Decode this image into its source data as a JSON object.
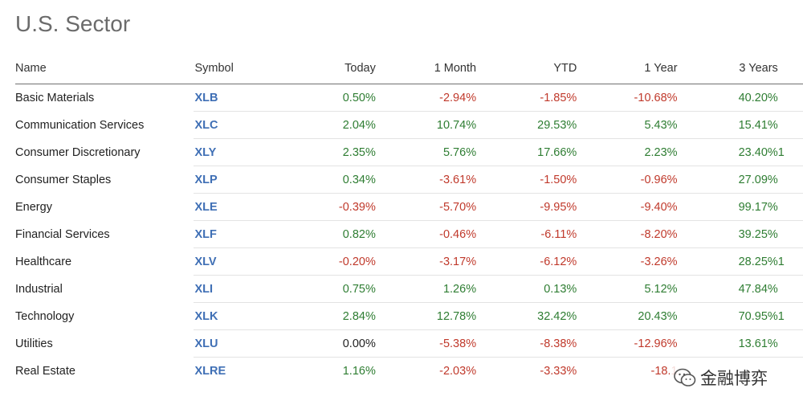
{
  "page": {
    "title": "U.S. Sector"
  },
  "table": {
    "headers": {
      "name": "Name",
      "symbol": "Symbol",
      "today": "Today",
      "one_month": "1 Month",
      "ytd": "YTD",
      "one_year": "1 Year",
      "three_years": "3 Years"
    },
    "rows": [
      {
        "name": "Basic Materials",
        "symbol": "XLB",
        "today": "0.50%",
        "one_month": "-2.94%",
        "ytd": "-1.85%",
        "one_year": "-10.68%",
        "three_years": "40.20%"
      },
      {
        "name": "Communication Services",
        "symbol": "XLC",
        "today": "2.04%",
        "one_month": "10.74%",
        "ytd": "29.53%",
        "one_year": "5.43%",
        "three_years": "15.41%"
      },
      {
        "name": "Consumer Discretionary",
        "symbol": "XLY",
        "today": "2.35%",
        "one_month": "5.76%",
        "ytd": "17.66%",
        "one_year": "2.23%",
        "three_years": "23.40%",
        "cut": "1"
      },
      {
        "name": "Consumer Staples",
        "symbol": "XLP",
        "today": "0.34%",
        "one_month": "-3.61%",
        "ytd": "-1.50%",
        "one_year": "-0.96%",
        "three_years": "27.09%"
      },
      {
        "name": "Energy",
        "symbol": "XLE",
        "today": "-0.39%",
        "one_month": "-5.70%",
        "ytd": "-9.95%",
        "one_year": "-9.40%",
        "three_years": "99.17%"
      },
      {
        "name": "Financial Services",
        "symbol": "XLF",
        "today": "0.82%",
        "one_month": "-0.46%",
        "ytd": "-6.11%",
        "one_year": "-8.20%",
        "three_years": "39.25%"
      },
      {
        "name": "Healthcare",
        "symbol": "XLV",
        "today": "-0.20%",
        "one_month": "-3.17%",
        "ytd": "-6.12%",
        "one_year": "-3.26%",
        "three_years": "28.25%",
        "cut": "1"
      },
      {
        "name": "Industrial",
        "symbol": "XLI",
        "today": "0.75%",
        "one_month": "1.26%",
        "ytd": "0.13%",
        "one_year": "5.12%",
        "three_years": "47.84%"
      },
      {
        "name": "Technology",
        "symbol": "XLK",
        "today": "2.84%",
        "one_month": "12.78%",
        "ytd": "32.42%",
        "one_year": "20.43%",
        "three_years": "70.95%",
        "cut": "1"
      },
      {
        "name": "Utilities",
        "symbol": "XLU",
        "today": "0.00%",
        "one_month": "-5.38%",
        "ytd": "-8.38%",
        "one_year": "-12.96%",
        "three_years": "13.61%"
      },
      {
        "name": "Real Estate",
        "symbol": "XLRE",
        "today": "1.16%",
        "one_month": "-2.03%",
        "ytd": "-3.33%",
        "one_year": "-18.1",
        "three_years": ""
      }
    ]
  },
  "watermark": {
    "text": "金融博弈",
    "icon": "wechat-icon"
  },
  "colors": {
    "positive": "#2e7d32",
    "negative": "#c0392b",
    "symbol": "#3f6fb5",
    "title": "#6b6b6b"
  }
}
